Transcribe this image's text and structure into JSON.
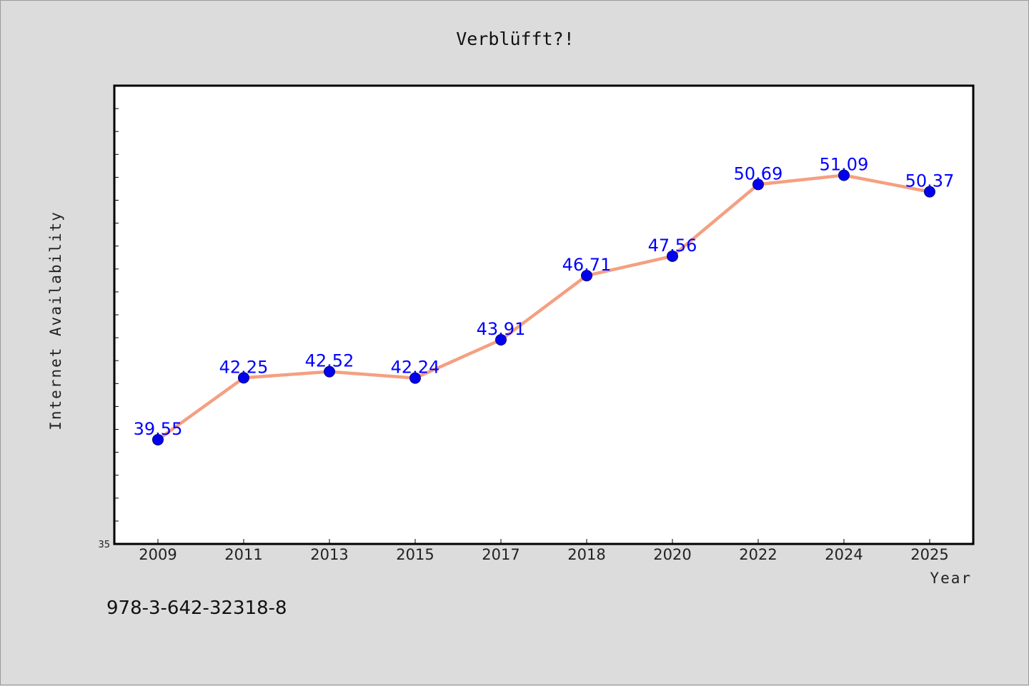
{
  "chart_data": {
    "type": "line",
    "title": "Verblüfft?!",
    "xlabel": "Year",
    "ylabel": "Internet Availability",
    "categories": [
      "2009",
      "2011",
      "2013",
      "2015",
      "2017",
      "2018",
      "2020",
      "2022",
      "2024",
      "2025"
    ],
    "series": [
      {
        "values": [
          39.55,
          42.25,
          42.52,
          42.24,
          43.91,
          46.71,
          47.56,
          50.69,
          51.09,
          50.37
        ],
        "value_labels": [
          "39.55",
          "42.25",
          "42.52",
          "42.24",
          "43.91",
          "46.71",
          "47.56",
          "50.69",
          "51.09",
          "50.37"
        ]
      }
    ],
    "ylim": [
      35,
      55
    ],
    "y_tick_labels": [
      "35"
    ],
    "grid": false,
    "line_color": "#f4a081",
    "marker_color": "#0000ee",
    "label_color": "#0000ff"
  },
  "footer_text": "978-3-642-32318-8"
}
